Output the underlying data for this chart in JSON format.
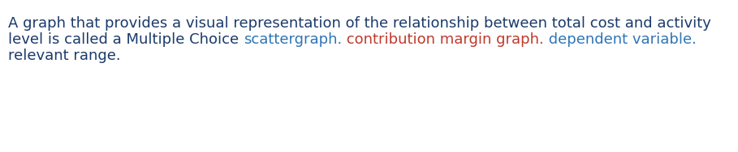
{
  "background_color": "#ffffff",
  "line1": "A graph that provides a visual representation of the relationship between total cost and activity",
  "line2_parts": [
    {
      "text": "level is called a Multiple Choice ",
      "color": "#1a3a6b"
    },
    {
      "text": "scattergraph.",
      "color": "#2e75b6"
    },
    {
      "text": " contribution margin graph.",
      "color": "#c0392b"
    },
    {
      "text": " dependent variable.",
      "color": "#2e75b6"
    }
  ],
  "line3_parts": [
    {
      "text": "relevant range.",
      "color": "#1a3a6b"
    }
  ],
  "line1_color": "#1a3a6b",
  "font_size": 13.0,
  "font_family": "DejaVu Sans",
  "fig_width": 9.09,
  "fig_height": 1.88,
  "dpi": 100
}
